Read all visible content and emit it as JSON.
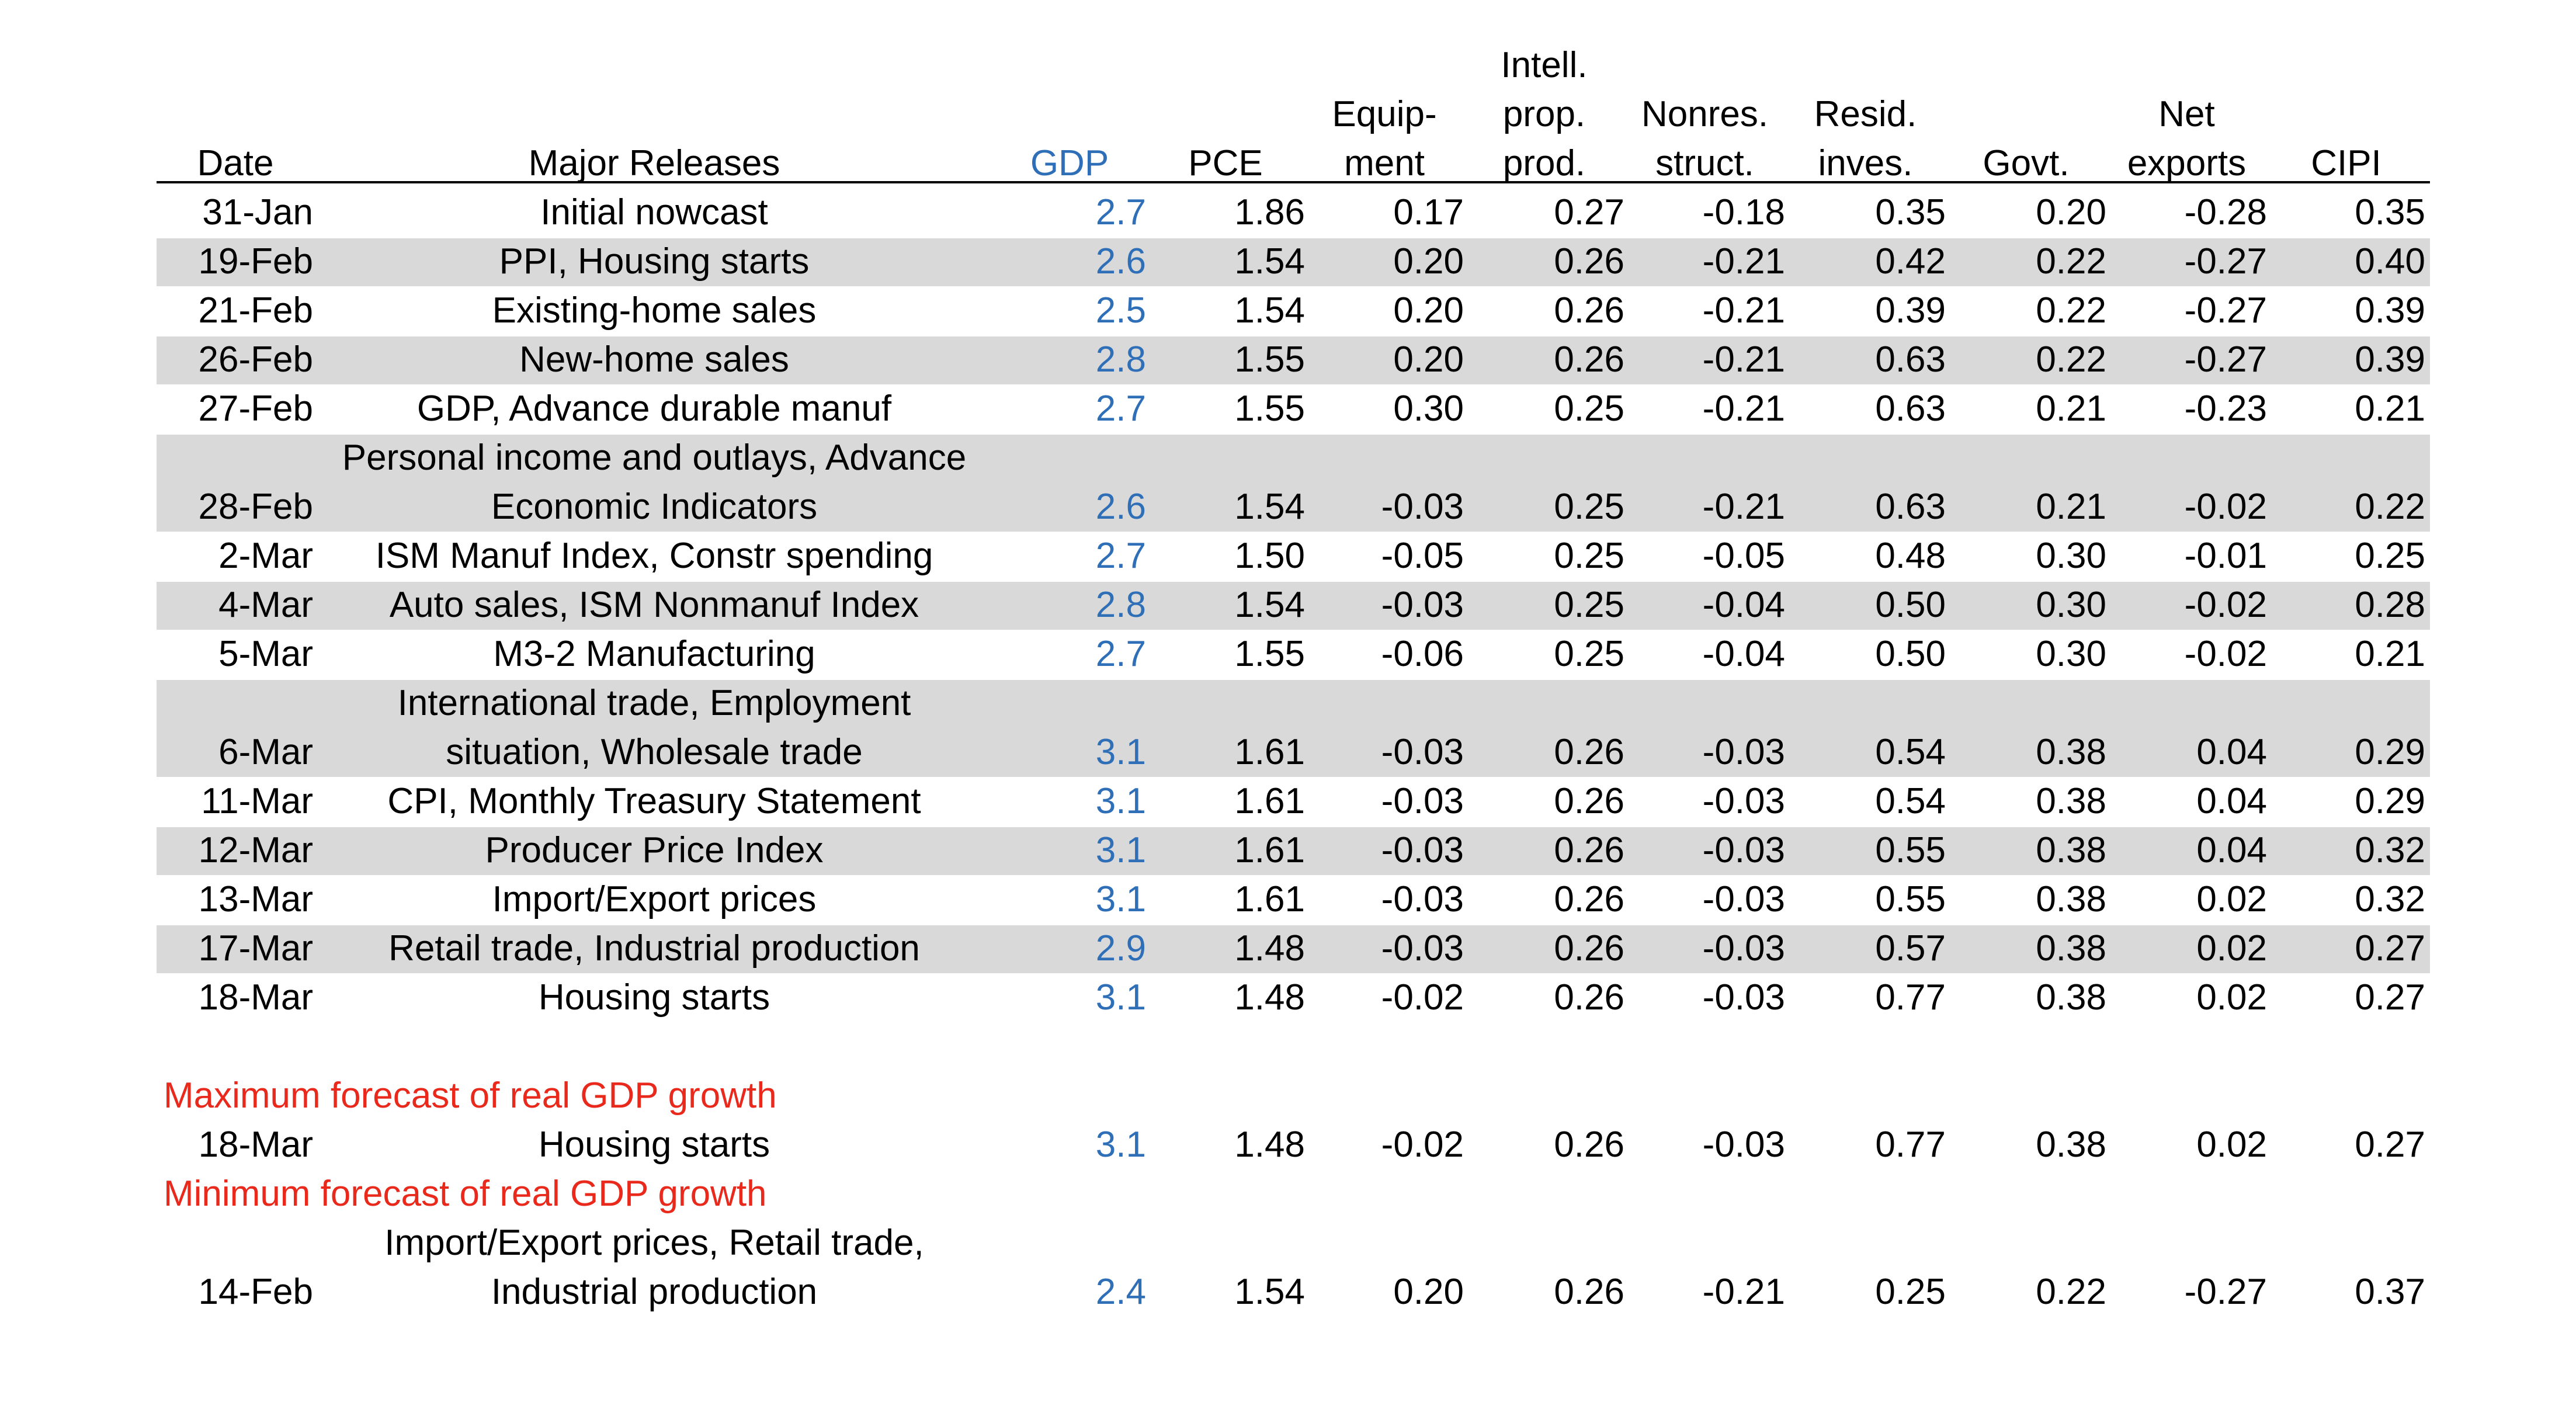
{
  "headers": {
    "date": "Date",
    "releases": "Major Releases",
    "gdp": "GDP",
    "pce": "PCE",
    "equipment": [
      "Equip-",
      "ment"
    ],
    "intellectual": [
      "Intell.",
      "prop.",
      "prod."
    ],
    "nonres": [
      "Nonres.",
      "struct."
    ],
    "resid": [
      "Resid.",
      "inves."
    ],
    "govt": "Govt.",
    "net_exports": [
      "Net",
      "exports"
    ],
    "cipi": "CIPI"
  },
  "rows": [
    {
      "date": "31-Jan",
      "release": [
        "Initial nowcast"
      ],
      "gdp": "2.7",
      "pce": "1.86",
      "eq": "0.17",
      "ipp": "0.27",
      "nrs": "-0.18",
      "res": "0.35",
      "gov": "0.20",
      "net": "-0.28",
      "cipi": "0.35"
    },
    {
      "date": "19-Feb",
      "release": [
        "PPI, Housing starts"
      ],
      "gdp": "2.6",
      "pce": "1.54",
      "eq": "0.20",
      "ipp": "0.26",
      "nrs": "-0.21",
      "res": "0.42",
      "gov": "0.22",
      "net": "-0.27",
      "cipi": "0.40"
    },
    {
      "date": "21-Feb",
      "release": [
        "Existing-home sales"
      ],
      "gdp": "2.5",
      "pce": "1.54",
      "eq": "0.20",
      "ipp": "0.26",
      "nrs": "-0.21",
      "res": "0.39",
      "gov": "0.22",
      "net": "-0.27",
      "cipi": "0.39"
    },
    {
      "date": "26-Feb",
      "release": [
        "New-home sales"
      ],
      "gdp": "2.8",
      "pce": "1.55",
      "eq": "0.20",
      "ipp": "0.26",
      "nrs": "-0.21",
      "res": "0.63",
      "gov": "0.22",
      "net": "-0.27",
      "cipi": "0.39"
    },
    {
      "date": "27-Feb",
      "release": [
        "GDP, Advance durable manuf"
      ],
      "gdp": "2.7",
      "pce": "1.55",
      "eq": "0.30",
      "ipp": "0.25",
      "nrs": "-0.21",
      "res": "0.63",
      "gov": "0.21",
      "net": "-0.23",
      "cipi": "0.21"
    },
    {
      "date": "28-Feb",
      "release": [
        "Personal income and outlays, Advance",
        "Economic Indicators"
      ],
      "gdp": "2.6",
      "pce": "1.54",
      "eq": "-0.03",
      "ipp": "0.25",
      "nrs": "-0.21",
      "res": "0.63",
      "gov": "0.21",
      "net": "-0.02",
      "cipi": "0.22"
    },
    {
      "date": "2-Mar",
      "release": [
        "ISM Manuf Index, Constr spending"
      ],
      "gdp": "2.7",
      "pce": "1.50",
      "eq": "-0.05",
      "ipp": "0.25",
      "nrs": "-0.05",
      "res": "0.48",
      "gov": "0.30",
      "net": "-0.01",
      "cipi": "0.25"
    },
    {
      "date": "4-Mar",
      "release": [
        "Auto sales, ISM Nonmanuf Index"
      ],
      "gdp": "2.8",
      "pce": "1.54",
      "eq": "-0.03",
      "ipp": "0.25",
      "nrs": "-0.04",
      "res": "0.50",
      "gov": "0.30",
      "net": "-0.02",
      "cipi": "0.28"
    },
    {
      "date": "5-Mar",
      "release": [
        "M3-2 Manufacturing"
      ],
      "gdp": "2.7",
      "pce": "1.55",
      "eq": "-0.06",
      "ipp": "0.25",
      "nrs": "-0.04",
      "res": "0.50",
      "gov": "0.30",
      "net": "-0.02",
      "cipi": "0.21"
    },
    {
      "date": "6-Mar",
      "release": [
        "International trade, Employment",
        "situation, Wholesale trade"
      ],
      "gdp": "3.1",
      "pce": "1.61",
      "eq": "-0.03",
      "ipp": "0.26",
      "nrs": "-0.03",
      "res": "0.54",
      "gov": "0.38",
      "net": "0.04",
      "cipi": "0.29"
    },
    {
      "date": "11-Mar",
      "release": [
        "CPI, Monthly Treasury Statement"
      ],
      "gdp": "3.1",
      "pce": "1.61",
      "eq": "-0.03",
      "ipp": "0.26",
      "nrs": "-0.03",
      "res": "0.54",
      "gov": "0.38",
      "net": "0.04",
      "cipi": "0.29"
    },
    {
      "date": "12-Mar",
      "release": [
        "Producer Price Index"
      ],
      "gdp": "3.1",
      "pce": "1.61",
      "eq": "-0.03",
      "ipp": "0.26",
      "nrs": "-0.03",
      "res": "0.55",
      "gov": "0.38",
      "net": "0.04",
      "cipi": "0.32"
    },
    {
      "date": "13-Mar",
      "release": [
        "Import/Export prices"
      ],
      "gdp": "3.1",
      "pce": "1.61",
      "eq": "-0.03",
      "ipp": "0.26",
      "nrs": "-0.03",
      "res": "0.55",
      "gov": "0.38",
      "net": "0.02",
      "cipi": "0.32"
    },
    {
      "date": "17-Mar",
      "release": [
        "Retail trade, Industrial production"
      ],
      "gdp": "2.9",
      "pce": "1.48",
      "eq": "-0.03",
      "ipp": "0.26",
      "nrs": "-0.03",
      "res": "0.57",
      "gov": "0.38",
      "net": "0.02",
      "cipi": "0.27"
    },
    {
      "date": "18-Mar",
      "release": [
        "Housing starts"
      ],
      "gdp": "3.1",
      "pce": "1.48",
      "eq": "-0.02",
      "ipp": "0.26",
      "nrs": "-0.03",
      "res": "0.77",
      "gov": "0.38",
      "net": "0.02",
      "cipi": "0.27"
    }
  ],
  "maximum": {
    "label": "Maximum forecast of real GDP growth",
    "row": {
      "date": "18-Mar",
      "release": [
        "Housing starts"
      ],
      "gdp": "3.1",
      "pce": "1.48",
      "eq": "-0.02",
      "ipp": "0.26",
      "nrs": "-0.03",
      "res": "0.77",
      "gov": "0.38",
      "net": "0.02",
      "cipi": "0.27"
    }
  },
  "minimum": {
    "label": "Minimum forecast of real GDP growth",
    "row": {
      "date": "14-Feb",
      "release": [
        "Import/Export prices, Retail trade,",
        "Industrial production"
      ],
      "gdp": "2.4",
      "pce": "1.54",
      "eq": "0.20",
      "ipp": "0.26",
      "nrs": "-0.21",
      "res": "0.25",
      "gov": "0.22",
      "net": "-0.27",
      "cipi": "0.37"
    }
  },
  "colors": {
    "gdp": "#2f6fb8",
    "label_red": "#e8291c",
    "shade": "#d9d9d9"
  }
}
